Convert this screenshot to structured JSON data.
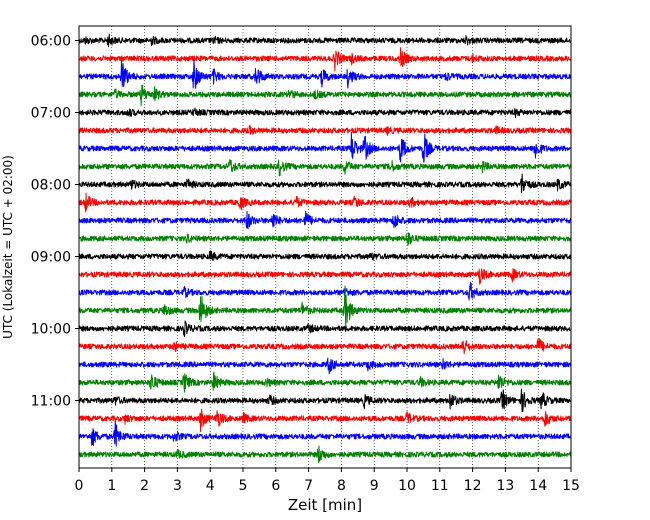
{
  "chart_data": {
    "type": "line",
    "title": "",
    "xlabel": "Zeit  [min]",
    "ylabel": "UTC (Lokalzeit = UTC + 02:00)",
    "xlim": [
      0,
      15
    ],
    "x_ticks": [
      "0",
      "1",
      "2",
      "3",
      "4",
      "5",
      "6",
      "7",
      "8",
      "9",
      "10",
      "11",
      "12",
      "13",
      "14",
      "15"
    ],
    "y_tick_labels": [
      "06:00",
      "07:00",
      "08:00",
      "09:00",
      "10:00",
      "11:00"
    ],
    "grid": "vertical-dotted",
    "trace_colors": [
      "#000000",
      "#ff0000",
      "#0000ff",
      "#008000"
    ],
    "traces": [
      {
        "start": "06:00",
        "color": "#000000",
        "events": [
          [
            0.2,
            0.35
          ],
          [
            0.9,
            0.7
          ],
          [
            2.2,
            0.5
          ],
          [
            4.1,
            0.4
          ],
          [
            11.8,
            0.5
          ]
        ]
      },
      {
        "start": "06:15",
        "color": "#ff0000",
        "events": [
          [
            7.8,
            1.5
          ],
          [
            8.3,
            0.6
          ],
          [
            9.8,
            1.5
          ],
          [
            12.0,
            0.4
          ]
        ]
      },
      {
        "start": "06:30",
        "color": "#0000ff",
        "events": [
          [
            1.3,
            2.5
          ],
          [
            3.5,
            2.3
          ],
          [
            4.1,
            0.9
          ],
          [
            5.4,
            1.6
          ],
          [
            7.4,
            1.2
          ],
          [
            8.2,
            1.4
          ],
          [
            11.2,
            0.5
          ]
        ]
      },
      {
        "start": "06:45",
        "color": "#008000",
        "events": [
          [
            1.1,
            0.5
          ],
          [
            1.9,
            1.4
          ],
          [
            2.3,
            0.8
          ],
          [
            6.4,
            0.6
          ],
          [
            7.2,
            0.5
          ]
        ]
      },
      {
        "start": "07:00",
        "color": "#000000",
        "events": [
          [
            1.5,
            0.4
          ],
          [
            3.5,
            0.4
          ],
          [
            13.3,
            0.4
          ]
        ]
      },
      {
        "start": "07:15",
        "color": "#ff0000",
        "events": [
          [
            5.2,
            0.4
          ],
          [
            9.4,
            0.4
          ],
          [
            12.7,
            0.4
          ]
        ]
      },
      {
        "start": "07:30",
        "color": "#0000ff",
        "events": [
          [
            8.3,
            2.3
          ],
          [
            8.7,
            1.8
          ],
          [
            9.8,
            2.0
          ],
          [
            10.5,
            2.5
          ],
          [
            13.9,
            1.5
          ]
        ]
      },
      {
        "start": "07:45",
        "color": "#008000",
        "events": [
          [
            4.6,
            1.0
          ],
          [
            6.1,
            1.2
          ],
          [
            8.1,
            1.0
          ],
          [
            9.5,
            0.8
          ],
          [
            12.3,
            0.6
          ]
        ]
      },
      {
        "start": "08:00",
        "color": "#000000",
        "events": [
          [
            1.6,
            0.6
          ],
          [
            3.3,
            0.6
          ],
          [
            13.5,
            1.5
          ],
          [
            14.6,
            0.7
          ]
        ]
      },
      {
        "start": "08:15",
        "color": "#ff0000",
        "events": [
          [
            0.2,
            1.3
          ],
          [
            4.9,
            1.0
          ],
          [
            6.6,
            0.8
          ],
          [
            8.4,
            0.8
          ],
          [
            10.1,
            0.6
          ]
        ]
      },
      {
        "start": "08:30",
        "color": "#0000ff",
        "events": [
          [
            5.1,
            1.4
          ],
          [
            5.9,
            1.2
          ],
          [
            6.9,
            1.2
          ],
          [
            9.6,
            1.2
          ]
        ]
      },
      {
        "start": "08:45",
        "color": "#008000",
        "events": [
          [
            3.3,
            0.5
          ],
          [
            10.0,
            1.1
          ]
        ]
      },
      {
        "start": "09:00",
        "color": "#000000",
        "events": [
          [
            4.0,
            0.6
          ],
          [
            8.9,
            0.4
          ]
        ]
      },
      {
        "start": "09:15",
        "color": "#ff0000",
        "events": [
          [
            12.2,
            1.3
          ],
          [
            13.2,
            0.8
          ]
        ]
      },
      {
        "start": "09:30",
        "color": "#0000ff",
        "events": [
          [
            3.2,
            0.6
          ],
          [
            8.1,
            0.6
          ],
          [
            11.9,
            1.5
          ]
        ]
      },
      {
        "start": "09:45",
        "color": "#008000",
        "events": [
          [
            2.6,
            0.8
          ],
          [
            3.7,
            2.8
          ],
          [
            6.8,
            1.0
          ],
          [
            8.1,
            3.5
          ]
        ]
      },
      {
        "start": "10:00",
        "color": "#000000",
        "events": [
          [
            3.2,
            1.0
          ],
          [
            7.0,
            0.5
          ]
        ]
      },
      {
        "start": "10:15",
        "color": "#ff0000",
        "events": [
          [
            2.9,
            0.6
          ],
          [
            11.7,
            1.3
          ],
          [
            14.0,
            1.2
          ]
        ]
      },
      {
        "start": "10:30",
        "color": "#0000ff",
        "events": [
          [
            7.6,
            1.3
          ],
          [
            8.8,
            0.6
          ],
          [
            11.1,
            0.6
          ]
        ]
      },
      {
        "start": "10:45",
        "color": "#008000",
        "events": [
          [
            2.2,
            1.4
          ],
          [
            3.2,
            1.3
          ],
          [
            4.1,
            1.3
          ],
          [
            5.7,
            0.5
          ],
          [
            10.4,
            0.6
          ],
          [
            12.8,
            1.3
          ]
        ]
      },
      {
        "start": "11:00",
        "color": "#000000",
        "events": [
          [
            1.1,
            0.5
          ],
          [
            5.8,
            0.6
          ],
          [
            8.7,
            0.8
          ],
          [
            11.3,
            1.3
          ],
          [
            12.9,
            1.5
          ],
          [
            13.5,
            1.6
          ],
          [
            14.1,
            1.2
          ]
        ]
      },
      {
        "start": "11:15",
        "color": "#ff0000",
        "events": [
          [
            1.4,
            0.5
          ],
          [
            3.7,
            1.6
          ],
          [
            4.2,
            1.4
          ],
          [
            5.0,
            0.6
          ],
          [
            10.0,
            0.8
          ],
          [
            14.2,
            1.2
          ]
        ]
      },
      {
        "start": "11:30",
        "color": "#0000ff",
        "events": [
          [
            0.4,
            1.3
          ],
          [
            1.1,
            1.9
          ],
          [
            2.9,
            0.6
          ]
        ]
      },
      {
        "start": "11:45",
        "color": "#008000",
        "events": [
          [
            3.0,
            0.5
          ],
          [
            7.3,
            1.2
          ]
        ]
      }
    ]
  }
}
